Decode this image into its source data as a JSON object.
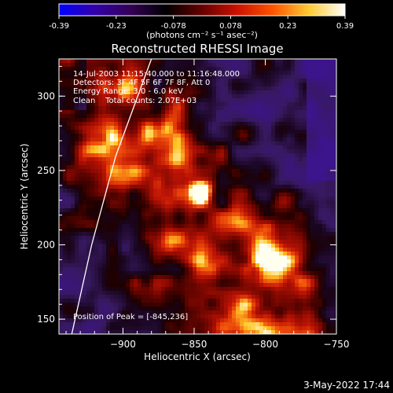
{
  "chart_data": {
    "type": "heatmap",
    "title": "Reconstructed RHESSI Image",
    "xlabel": "Heliocentric X (arcsec)",
    "ylabel": "Heliocentric Y (arcsec)",
    "xlim": [
      -945,
      -750
    ],
    "ylim": [
      140,
      325
    ],
    "xticks": [
      -900,
      -850,
      -800,
      -750
    ],
    "yticks": [
      150,
      200,
      250,
      300
    ],
    "colorbar": {
      "range": [
        -0.39,
        0.39
      ],
      "ticks": [
        "-0.39",
        "-0.23",
        "-0.078",
        "0.078",
        "0.23",
        "0.39"
      ],
      "unit_label": "(photons cm⁻² s⁻¹ asec⁻²)",
      "colormap": [
        "#0000ff",
        "#3300aa",
        "#330055",
        "#000000",
        "#660000",
        "#cc1100",
        "#ff5500",
        "#ffcc33",
        "#ffffff"
      ]
    },
    "info_lines": [
      "14-Jul-2003 11:15:40.000 to 11:16:48.000",
      "Detectors: 3F 4F 5F 6F 7F 8F, Att 0",
      "Energy Range: 3.0 - 6.0 keV",
      "Clean    Total counts: 2.07E+03"
    ],
    "peak_label": "Position of Peak = [-845,236]",
    "peak": {
      "x": -845,
      "y": 236
    },
    "limb_curve": [
      [
        -936,
        140
      ],
      [
        -922,
        200
      ],
      [
        -905,
        260
      ],
      [
        -880,
        325
      ]
    ]
  },
  "footer": {
    "date": "3-May-2022 17:44"
  }
}
